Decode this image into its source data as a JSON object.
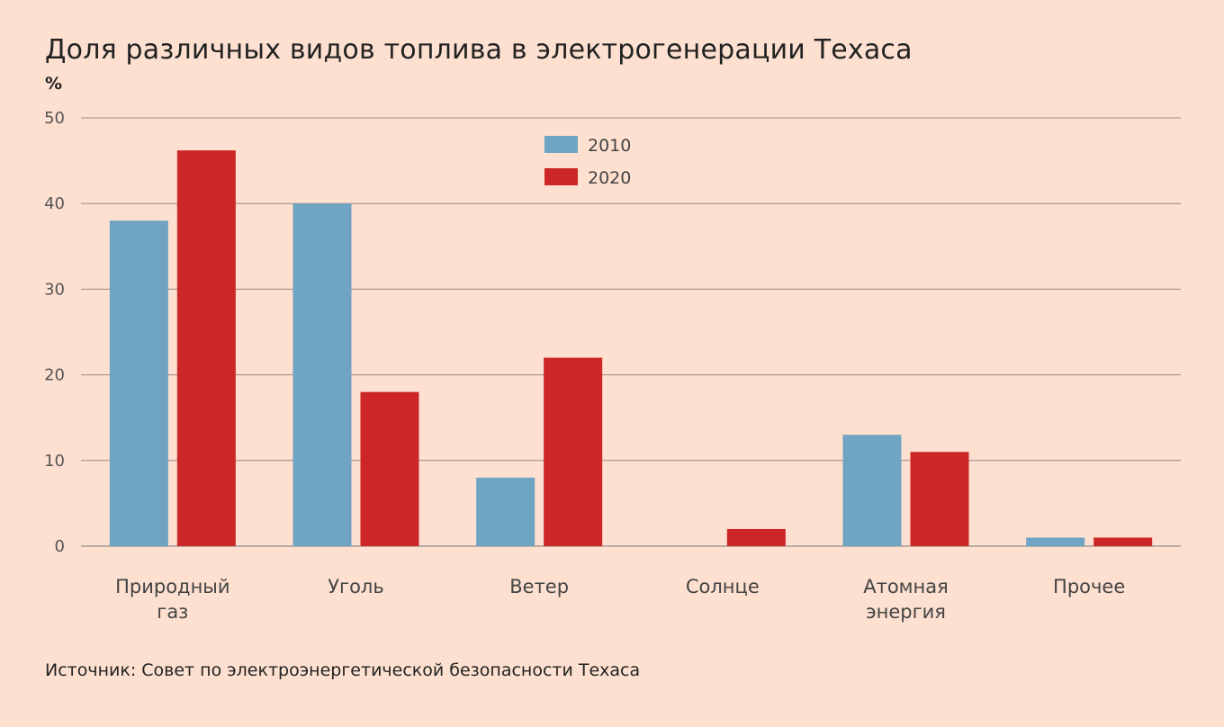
{
  "chart_data": {
    "type": "bar",
    "title": "Доля различных видов топлива в электрогенерации Техаса",
    "ylabel": "%",
    "xlabel": "",
    "ylim": [
      0,
      50
    ],
    "yticks": [
      0,
      10,
      20,
      30,
      40,
      50
    ],
    "grid": true,
    "legend_position": "top-center",
    "categories": [
      [
        "Природный",
        "газ"
      ],
      [
        "Уголь"
      ],
      [
        "Ветер"
      ],
      [
        "Солнце"
      ],
      [
        "Атомная",
        "энергия"
      ],
      [
        "Прочее"
      ]
    ],
    "series": [
      {
        "name": "2010",
        "color": "#6fa4c2",
        "values": [
          38,
          40,
          8,
          0,
          13,
          1
        ]
      },
      {
        "name": "2020",
        "color": "#cc2626",
        "values": [
          46.2,
          18,
          22,
          2,
          11,
          1
        ]
      }
    ],
    "source": "Источник: Совет по электроэнергетической безопасности Техаса"
  }
}
